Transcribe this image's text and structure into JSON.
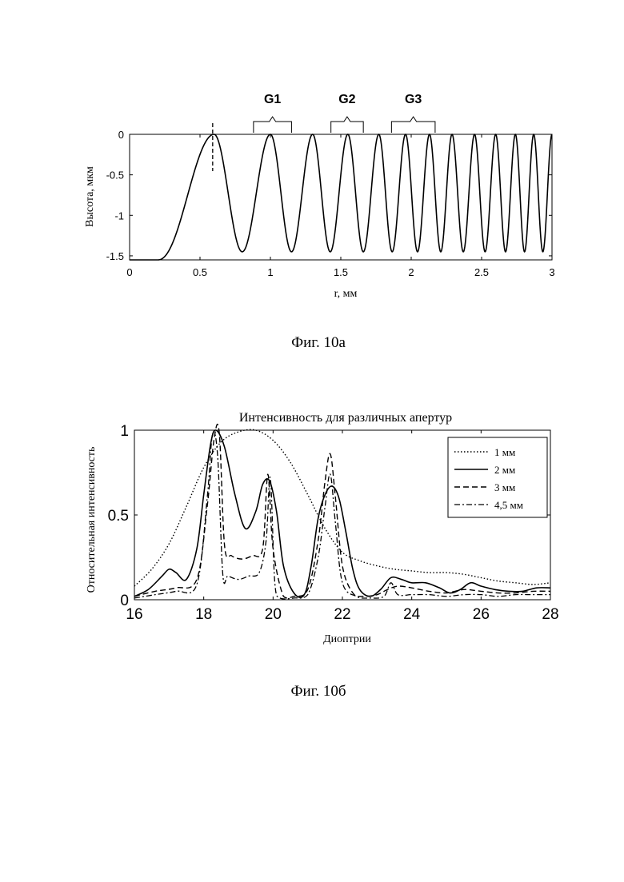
{
  "chart_data": [
    {
      "type": "line",
      "caption": "Фиг. 10а",
      "title": "",
      "xlabel": "r, мм",
      "ylabel": "Высота, мкм",
      "xlim": [
        0,
        3
      ],
      "ylim": [
        -1.55,
        0
      ],
      "xticks": [
        "0",
        "0.5",
        "1",
        "1.5",
        "2",
        "2.5",
        "3"
      ],
      "yticks": [
        "0",
        "-0.5",
        "-1",
        "-1.5"
      ],
      "grid": false,
      "peaks_r": [
        0.6,
        1.0,
        1.3,
        1.55,
        1.77,
        1.96,
        2.13,
        2.29,
        2.45,
        2.6,
        2.74,
        2.87,
        3.0
      ],
      "min_height": -1.45,
      "base_height": -1.55,
      "marker_r": 0.59,
      "annotations": [
        {
          "label": "G1",
          "from": 0.88,
          "to": 1.15
        },
        {
          "label": "G2",
          "from": 1.43,
          "to": 1.66
        },
        {
          "label": "G3",
          "from": 1.86,
          "to": 2.17
        }
      ]
    },
    {
      "type": "line",
      "caption": "Фиг. 10б",
      "title": "Интенсивность для различных апертур",
      "xlabel": "Диоптрии",
      "ylabel": "Относительная интенсивность",
      "xlim": [
        16,
        28
      ],
      "ylim": [
        0,
        1
      ],
      "xticks": [
        "16",
        "18",
        "20",
        "22",
        "24",
        "26",
        "28"
      ],
      "yticks": [
        "0",
        "0.5",
        "1"
      ],
      "grid": false,
      "legend_position": "top-right",
      "series": [
        {
          "name": "1 мм",
          "style": "dotted",
          "x": [
            16,
            16.5,
            17,
            17.5,
            18,
            18.5,
            19,
            19.5,
            20,
            20.5,
            21,
            21.5,
            22,
            22.5,
            23,
            23.5,
            24,
            24.5,
            25,
            25.5,
            26,
            26.5,
            27,
            27.5,
            28
          ],
          "y": [
            0.08,
            0.18,
            0.33,
            0.55,
            0.78,
            0.93,
            0.99,
            1.0,
            0.94,
            0.81,
            0.62,
            0.42,
            0.28,
            0.23,
            0.2,
            0.18,
            0.17,
            0.16,
            0.16,
            0.15,
            0.13,
            0.11,
            0.1,
            0.09,
            0.1
          ]
        },
        {
          "name": "2 мм",
          "style": "solid",
          "x": [
            16,
            16.4,
            16.8,
            17,
            17.2,
            17.5,
            17.8,
            18,
            18.2,
            18.35,
            18.6,
            18.9,
            19.2,
            19.5,
            19.7,
            19.9,
            20.1,
            20.3,
            20.6,
            20.9,
            21.1,
            21.3,
            21.5,
            21.7,
            21.9,
            22.1,
            22.3,
            22.5,
            22.8,
            23.1,
            23.4,
            23.7,
            24,
            24.4,
            24.8,
            25.1,
            25.4,
            25.7,
            26,
            26.4,
            26.8,
            27.2,
            27.6,
            28
          ],
          "y": [
            0.02,
            0.06,
            0.14,
            0.18,
            0.16,
            0.12,
            0.3,
            0.62,
            0.92,
            1.0,
            0.9,
            0.62,
            0.42,
            0.52,
            0.68,
            0.7,
            0.52,
            0.2,
            0.04,
            0.03,
            0.2,
            0.48,
            0.62,
            0.67,
            0.6,
            0.4,
            0.18,
            0.06,
            0.02,
            0.06,
            0.13,
            0.12,
            0.1,
            0.1,
            0.07,
            0.04,
            0.06,
            0.1,
            0.08,
            0.06,
            0.05,
            0.05,
            0.07,
            0.07
          ]
        },
        {
          "name": "3 мм",
          "style": "dashed",
          "x": [
            16,
            16.6,
            17.2,
            17.8,
            18.1,
            18.3,
            18.45,
            18.6,
            18.8,
            19.1,
            19.4,
            19.7,
            19.85,
            20,
            20.3,
            20.6,
            21,
            21.3,
            21.5,
            21.65,
            21.8,
            22,
            22.3,
            22.6,
            23,
            23.3,
            23.6,
            24,
            24.5,
            25,
            25.5,
            26,
            26.5,
            27,
            27.5,
            28
          ],
          "y": [
            0.02,
            0.05,
            0.07,
            0.12,
            0.55,
            0.95,
            0.98,
            0.32,
            0.26,
            0.24,
            0.26,
            0.3,
            0.74,
            0.3,
            0.02,
            0.02,
            0.06,
            0.35,
            0.7,
            0.86,
            0.6,
            0.2,
            0.04,
            0.02,
            0.03,
            0.06,
            0.08,
            0.07,
            0.05,
            0.04,
            0.06,
            0.05,
            0.04,
            0.04,
            0.05,
            0.05
          ]
        },
        {
          "name": "4,5 мм",
          "style": "dashdot",
          "x": [
            16,
            16.6,
            17.2,
            17.8,
            18.1,
            18.25,
            18.4,
            18.55,
            18.7,
            19,
            19.3,
            19.6,
            19.8,
            19.92,
            20.05,
            20.2,
            20.6,
            21,
            21.3,
            21.5,
            21.65,
            21.8,
            22,
            22.4,
            22.8,
            23.2,
            23.4,
            23.6,
            24,
            24.5,
            25,
            25.5,
            26,
            26.5,
            27,
            27.5,
            28
          ],
          "y": [
            0.01,
            0.03,
            0.05,
            0.09,
            0.6,
            0.97,
            0.85,
            0.15,
            0.14,
            0.12,
            0.14,
            0.16,
            0.35,
            0.72,
            0.1,
            0.01,
            0.01,
            0.03,
            0.25,
            0.55,
            0.74,
            0.45,
            0.1,
            0.02,
            0.01,
            0.02,
            0.1,
            0.03,
            0.03,
            0.03,
            0.02,
            0.03,
            0.03,
            0.02,
            0.03,
            0.03,
            0.03
          ]
        }
      ]
    }
  ]
}
